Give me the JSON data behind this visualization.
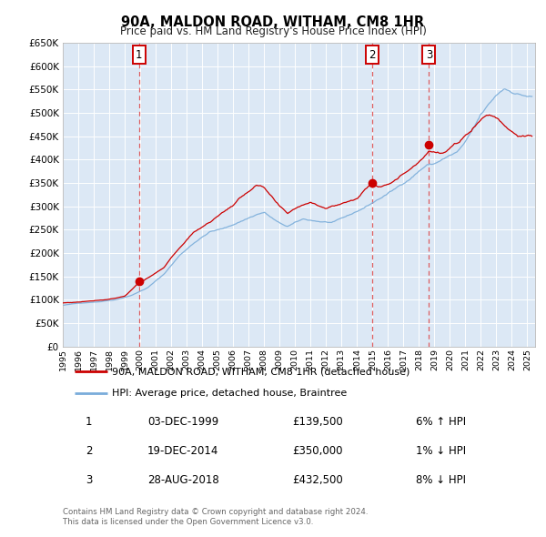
{
  "title": "90A, MALDON ROAD, WITHAM, CM8 1HR",
  "subtitle": "Price paid vs. HM Land Registry's House Price Index (HPI)",
  "legend_label_red": "90A, MALDON ROAD, WITHAM, CM8 1HR (detached house)",
  "legend_label_blue": "HPI: Average price, detached house, Braintree",
  "transactions": [
    {
      "label": "1",
      "date": "03-DEC-1999",
      "price": "£139,500",
      "pct": "6%",
      "dir": "↑",
      "year_dec": 1999.92
    },
    {
      "label": "2",
      "date": "19-DEC-2014",
      "price": "£350,000",
      "pct": "1%",
      "dir": "↓",
      "year_dec": 2014.96
    },
    {
      "label": "3",
      "date": "28-AUG-2018",
      "price": "£432,500",
      "pct": "8%",
      "dir": "↓",
      "year_dec": 2018.65
    }
  ],
  "footnote1": "Contains HM Land Registry data © Crown copyright and database right 2024.",
  "footnote2": "This data is licensed under the Open Government Licence v3.0.",
  "background_color": "#ffffff",
  "plot_bg_color": "#dce8f5",
  "grid_color": "#ffffff",
  "red_color": "#cc0000",
  "blue_color": "#7aadda",
  "vline_color": "#dd4444",
  "ylim_min": 0,
  "ylim_max": 650000,
  "xlim_min": 1995.0,
  "xlim_max": 2025.5,
  "yticks": [
    0,
    50000,
    100000,
    150000,
    200000,
    250000,
    300000,
    350000,
    400000,
    450000,
    500000,
    550000,
    600000,
    650000
  ],
  "xticks": [
    1995,
    1996,
    1997,
    1998,
    1999,
    2000,
    2001,
    2002,
    2003,
    2004,
    2005,
    2006,
    2007,
    2008,
    2009,
    2010,
    2011,
    2012,
    2013,
    2014,
    2015,
    2016,
    2017,
    2018,
    2019,
    2020,
    2021,
    2022,
    2023,
    2024,
    2025
  ]
}
